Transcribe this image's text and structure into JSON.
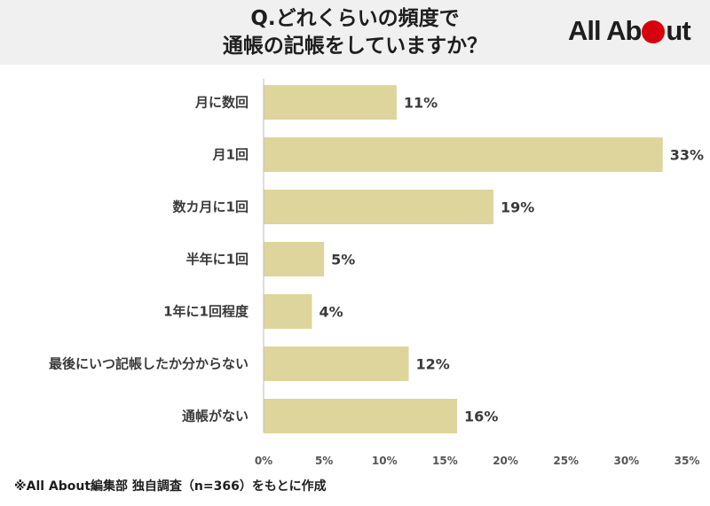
{
  "header": {
    "title_line1": "Q.どれくらいの頻度で",
    "title_line2": "通帳の記帳をしていますか？",
    "logo_left": "All Ab",
    "logo_right": "ut",
    "logo_dot_color": "#d7000f"
  },
  "footnote": "※All About編集部 独自調査（n=366）をもとに作成",
  "chart_data": {
    "type": "bar",
    "orientation": "horizontal",
    "title": "Q.どれくらいの頻度で通帳の記帳をしていますか？",
    "categories": [
      "月に数回",
      "月1回",
      "数カ月に1回",
      "半年に1回",
      "1年に1回程度",
      "最後にいつ記帳したか分からない",
      "通帳がない"
    ],
    "values": [
      11,
      33,
      19,
      5,
      4,
      12,
      16
    ],
    "value_labels": [
      "11%",
      "33%",
      "19%",
      "5%",
      "4%",
      "12%",
      "16%"
    ],
    "xlim": [
      0,
      35
    ],
    "xticks": [
      0,
      5,
      10,
      15,
      20,
      25,
      30,
      35
    ],
    "xtick_labels": [
      "0%",
      "5%",
      "10%",
      "15%",
      "20%",
      "25%",
      "30%",
      "35%"
    ],
    "bar_color": "#ddd59b",
    "grid": false,
    "legend": "none"
  }
}
